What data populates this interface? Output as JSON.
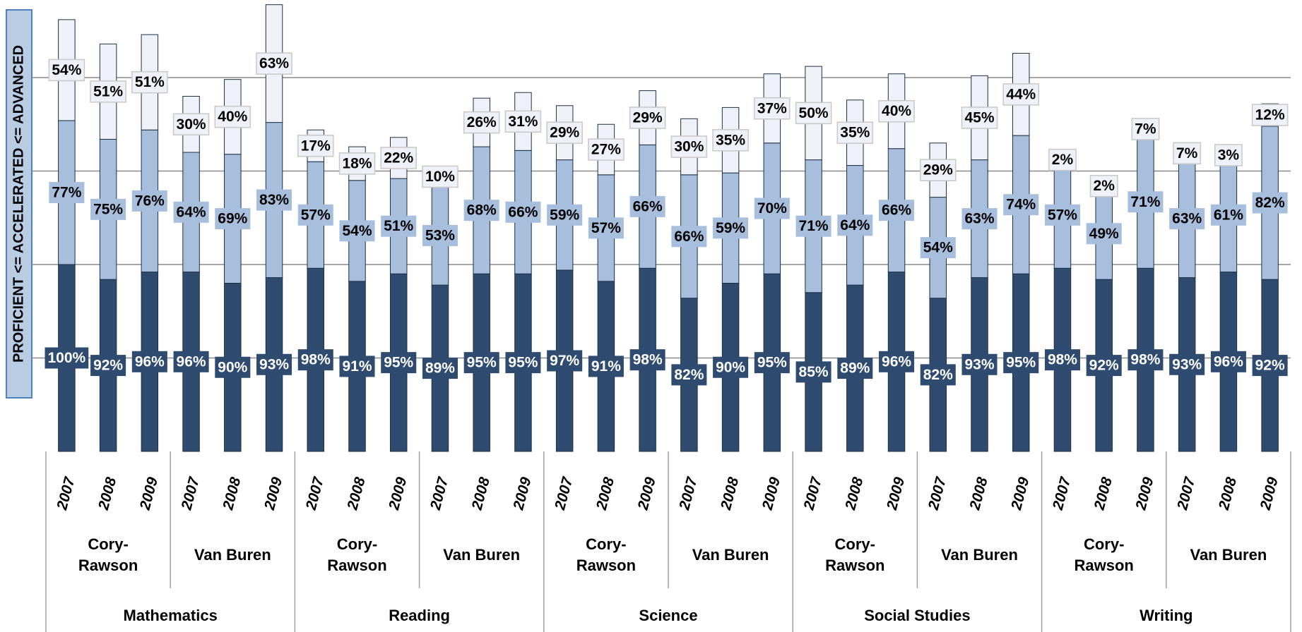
{
  "chart_data": {
    "type": "stacked_bar",
    "ylabel": "PROFICIENT <= ACCELERATED <= ADVANCED",
    "categories": [
      "2007",
      "2008",
      "2009",
      "2007",
      "2008",
      "2009",
      "2007",
      "2008",
      "2009",
      "2007",
      "2008",
      "2009",
      "2007",
      "2008",
      "2009",
      "2007",
      "2008",
      "2009",
      "2007",
      "2008",
      "2009",
      "2007",
      "2008",
      "2009",
      "2007",
      "2008",
      "2009",
      "2007",
      "2008",
      "2009"
    ],
    "schools": [
      "Cory-Rawson",
      "Van Buren",
      "Cory-Rawson",
      "Van Buren",
      "Cory-Rawson",
      "Van Buren",
      "Cory-Rawson",
      "Van Buren",
      "Cory-Rawson",
      "Van Buren"
    ],
    "subjects": [
      "Mathematics",
      "Reading",
      "Science",
      "Social Studies",
      "Writing"
    ],
    "series": [
      {
        "color": "#2f4b70",
        "values": [
          100,
          92,
          96,
          96,
          90,
          93,
          98,
          91,
          95,
          89,
          95,
          95,
          97,
          91,
          98,
          82,
          90,
          95,
          85,
          89,
          96,
          82,
          93,
          95,
          98,
          92,
          98,
          93,
          96,
          92
        ],
        "value_labels": [
          "100%",
          "92%",
          "96%",
          "96%",
          "90%",
          "93%",
          "98%",
          "91%",
          "95%",
          "89%",
          "95%",
          "95%",
          "97%",
          "91%",
          "98%",
          "82%",
          "90%",
          "95%",
          "85%",
          "89%",
          "96%",
          "82%",
          "93%",
          "95%",
          "98%",
          "92%",
          "98%",
          "93%",
          "96%",
          "92%"
        ]
      },
      {
        "color": "#a7bedd",
        "values": [
          77,
          75,
          76,
          64,
          69,
          83,
          57,
          54,
          51,
          53,
          68,
          66,
          59,
          57,
          66,
          66,
          59,
          70,
          71,
          64,
          66,
          54,
          63,
          74,
          57,
          49,
          71,
          63,
          61,
          82
        ],
        "value_labels": [
          "77%",
          "75%",
          "76%",
          "64%",
          "69%",
          "83%",
          "57%",
          "54%",
          "51%",
          "53%",
          "68%",
          "66%",
          "59%",
          "57%",
          "66%",
          "66%",
          "59%",
          "70%",
          "71%",
          "64%",
          "66%",
          "54%",
          "63%",
          "74%",
          "57%",
          "49%",
          "71%",
          "63%",
          "61%",
          "82%"
        ]
      },
      {
        "color": "#eef2f8",
        "values": [
          54,
          51,
          51,
          30,
          40,
          63,
          17,
          18,
          22,
          10,
          26,
          31,
          29,
          27,
          29,
          30,
          35,
          37,
          50,
          35,
          40,
          29,
          45,
          44,
          2,
          2,
          7,
          7,
          3,
          12
        ],
        "value_labels": [
          "54%",
          "51%",
          "51%",
          "30%",
          "40%",
          "63%",
          "17%",
          "18%",
          "22%",
          "10%",
          "26%",
          "31%",
          "29%",
          "27%",
          "29%",
          "30%",
          "35%",
          "37%",
          "50%",
          "35%",
          "40%",
          "29%",
          "45%",
          "44%",
          "2%",
          "2%",
          "7%",
          "7%",
          "3%",
          "12%"
        ]
      }
    ],
    "ylim": [
      0,
      240
    ],
    "yticks": [
      50,
      100,
      150,
      200
    ],
    "grid": true
  }
}
